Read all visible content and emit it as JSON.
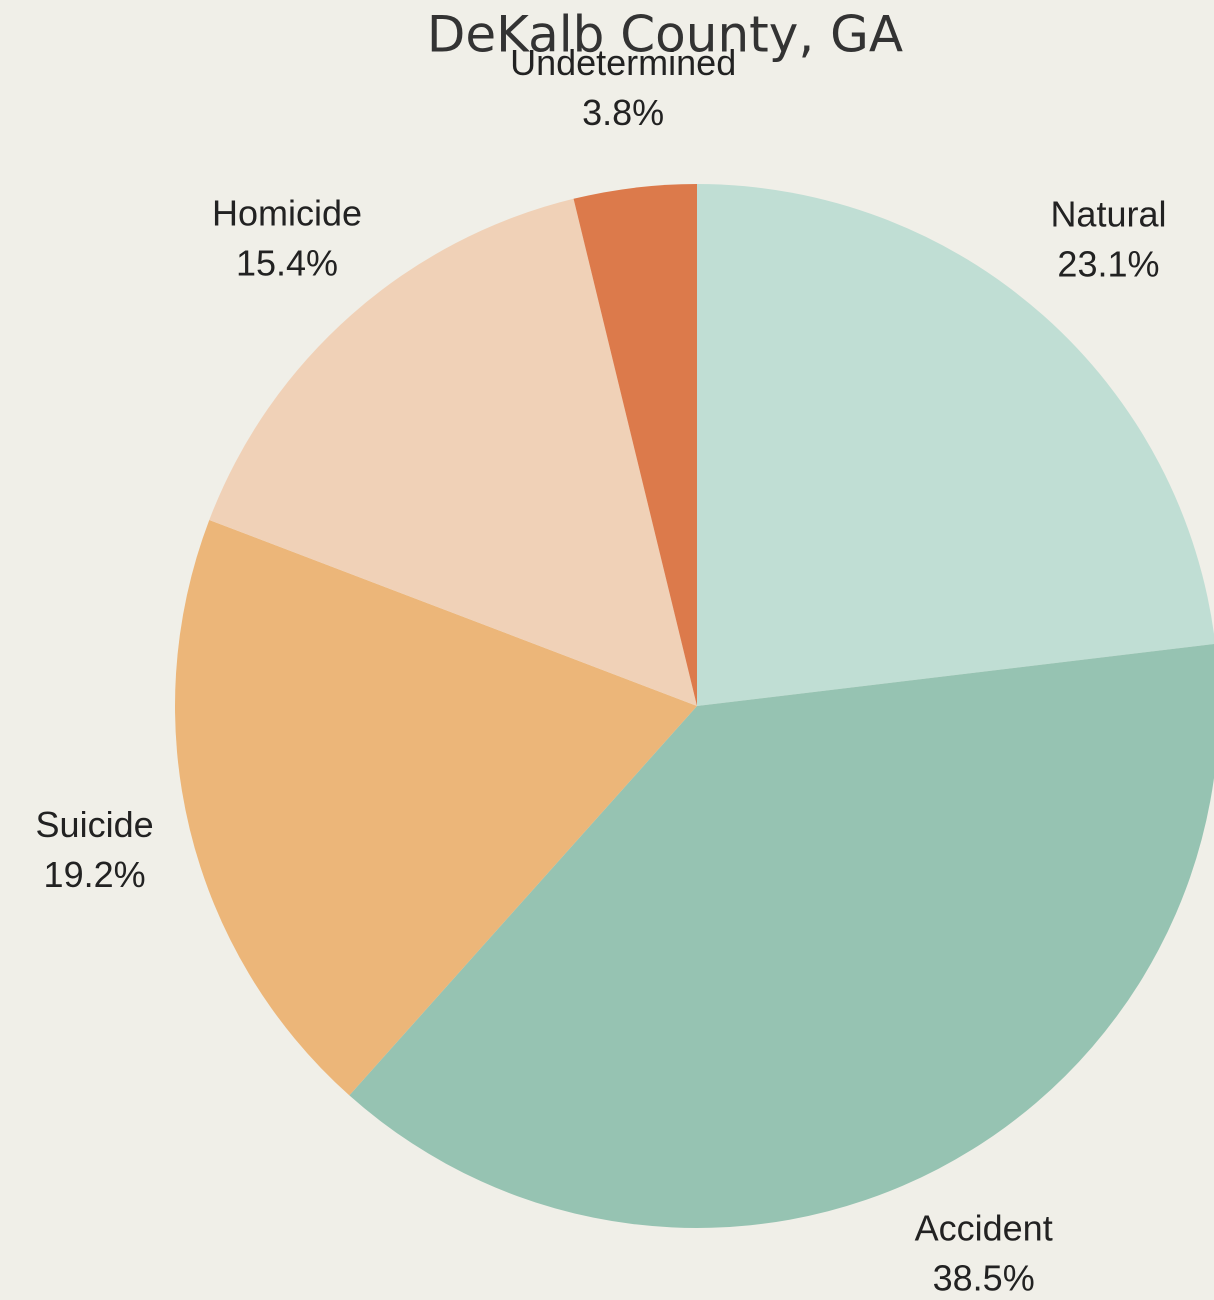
{
  "chart_data": {
    "type": "pie",
    "title": "DeKalb County, GA",
    "categories": [
      "Natural",
      "Accident",
      "Suicide",
      "Homicide",
      "Undetermined"
    ],
    "values": [
      23.1,
      38.5,
      19.2,
      15.4,
      3.8
    ],
    "value_labels": [
      "23.1%",
      "38.5%",
      "19.2%",
      "15.4%",
      "3.8%"
    ],
    "colors": [
      "#c0ded4",
      "#96c3b2",
      "#ecb679",
      "#f0d1b7",
      "#dc7a4b"
    ]
  }
}
